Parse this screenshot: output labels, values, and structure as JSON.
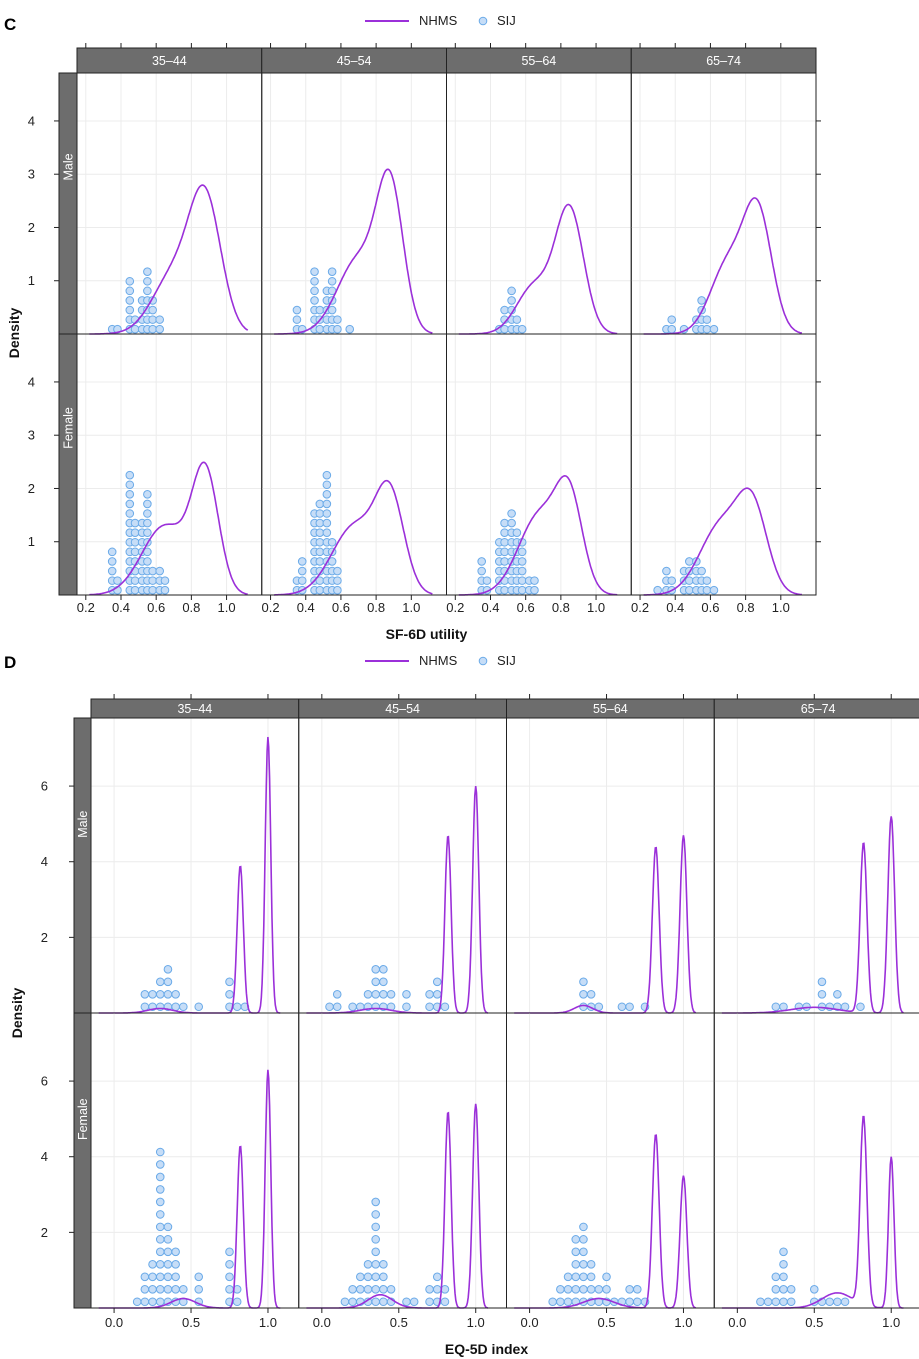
{
  "colors": {
    "NHMS": "#9b30d9",
    "SIJ_fill": "#c6ddf7",
    "SIJ_stroke": "#6aaae8",
    "strip": "#6d6d6d"
  },
  "chart_data": [
    {
      "type": "lattice-density",
      "panel_letter": "C",
      "legend": [
        "NHMS",
        "SIJ"
      ],
      "columns": [
        "35–44",
        "45–54",
        "55–64",
        "65–74"
      ],
      "rows": [
        "Male",
        "Female"
      ],
      "xlabel": "SF-6D utility",
      "ylabel": "Density",
      "xlim": [
        0.15,
        1.2
      ],
      "ylim": [
        0,
        4.9
      ],
      "xticks": [
        0.2,
        0.4,
        0.6,
        0.8,
        1.0
      ],
      "xtick_labels": [
        "0.2",
        "0.4",
        "0.6",
        "0.8",
        "1.0"
      ],
      "yticks": [
        1,
        2,
        3,
        4
      ],
      "dot_step": 0.18,
      "series": [
        {
          "name": "NHMS",
          "kind": "line"
        },
        {
          "name": "SIJ",
          "kind": "dotplot"
        }
      ],
      "panels": [
        {
          "row": "Male",
          "col": "35–44",
          "nhms": {
            "base_start": 0.22,
            "base_end": 1.12,
            "components": [
              {
                "mu": 0.88,
                "sigma": 0.09,
                "h": 2.4
              },
              {
                "mu": 0.7,
                "sigma": 0.12,
                "h": 1.1
              }
            ]
          },
          "sij": [
            [
              0.35,
              1
            ],
            [
              0.38,
              1
            ],
            [
              0.45,
              6
            ],
            [
              0.48,
              2
            ],
            [
              0.52,
              4
            ],
            [
              0.55,
              7
            ],
            [
              0.58,
              4
            ],
            [
              0.62,
              2
            ]
          ]
        },
        {
          "row": "Male",
          "col": "45–54",
          "nhms": {
            "base_start": 0.22,
            "base_end": 1.12,
            "components": [
              {
                "mu": 0.88,
                "sigma": 0.075,
                "h": 2.6
              },
              {
                "mu": 0.7,
                "sigma": 0.12,
                "h": 1.4
              }
            ]
          },
          "sij": [
            [
              0.35,
              3
            ],
            [
              0.38,
              1
            ],
            [
              0.45,
              7
            ],
            [
              0.48,
              3
            ],
            [
              0.52,
              5
            ],
            [
              0.55,
              7
            ],
            [
              0.58,
              2
            ],
            [
              0.65,
              1
            ]
          ]
        },
        {
          "row": "Male",
          "col": "55–64",
          "nhms": {
            "base_start": 0.22,
            "base_end": 1.12,
            "components": [
              {
                "mu": 0.85,
                "sigma": 0.08,
                "h": 2.3
              },
              {
                "mu": 0.65,
                "sigma": 0.1,
                "h": 0.9
              }
            ]
          },
          "sij": [
            [
              0.45,
              1
            ],
            [
              0.48,
              3
            ],
            [
              0.52,
              5
            ],
            [
              0.55,
              2
            ],
            [
              0.58,
              1
            ]
          ]
        },
        {
          "row": "Male",
          "col": "65–74",
          "nhms": {
            "base_start": 0.22,
            "base_end": 1.12,
            "components": [
              {
                "mu": 0.87,
                "sigma": 0.08,
                "h": 2.2
              },
              {
                "mu": 0.7,
                "sigma": 0.1,
                "h": 1.3
              }
            ]
          },
          "sij": [
            [
              0.35,
              1
            ],
            [
              0.38,
              2
            ],
            [
              0.45,
              1
            ],
            [
              0.52,
              2
            ],
            [
              0.55,
              4
            ],
            [
              0.58,
              2
            ],
            [
              0.62,
              1
            ]
          ]
        },
        {
          "row": "Female",
          "col": "35–44",
          "nhms": {
            "base_start": 0.22,
            "base_end": 1.12,
            "components": [
              {
                "mu": 0.88,
                "sigma": 0.075,
                "h": 2.2
              },
              {
                "mu": 0.65,
                "sigma": 0.13,
                "h": 1.3
              }
            ]
          },
          "sij": [
            [
              0.35,
              5
            ],
            [
              0.38,
              2
            ],
            [
              0.45,
              13
            ],
            [
              0.48,
              8
            ],
            [
              0.52,
              8
            ],
            [
              0.55,
              11
            ],
            [
              0.58,
              3
            ],
            [
              0.62,
              3
            ],
            [
              0.65,
              2
            ]
          ]
        },
        {
          "row": "Female",
          "col": "45–54",
          "nhms": {
            "base_start": 0.22,
            "base_end": 1.12,
            "components": [
              {
                "mu": 0.88,
                "sigma": 0.08,
                "h": 1.7
              },
              {
                "mu": 0.68,
                "sigma": 0.13,
                "h": 1.3
              }
            ]
          },
          "sij": [
            [
              0.35,
              2
            ],
            [
              0.38,
              4
            ],
            [
              0.45,
              9
            ],
            [
              0.48,
              10
            ],
            [
              0.52,
              13
            ],
            [
              0.55,
              6
            ],
            [
              0.58,
              3
            ]
          ]
        },
        {
          "row": "Female",
          "col": "55–64",
          "nhms": {
            "base_start": 0.22,
            "base_end": 1.12,
            "components": [
              {
                "mu": 0.85,
                "sigma": 0.075,
                "h": 1.6
              },
              {
                "mu": 0.68,
                "sigma": 0.12,
                "h": 1.5
              }
            ]
          },
          "sij": [
            [
              0.35,
              4
            ],
            [
              0.38,
              2
            ],
            [
              0.45,
              6
            ],
            [
              0.48,
              8
            ],
            [
              0.52,
              9
            ],
            [
              0.55,
              7
            ],
            [
              0.58,
              6
            ],
            [
              0.62,
              2
            ],
            [
              0.65,
              2
            ]
          ]
        },
        {
          "row": "Female",
          "col": "65–74",
          "nhms": {
            "base_start": 0.22,
            "base_end": 1.12,
            "components": [
              {
                "mu": 0.84,
                "sigma": 0.085,
                "h": 1.5
              },
              {
                "mu": 0.66,
                "sigma": 0.12,
                "h": 1.3
              }
            ]
          },
          "sij": [
            [
              0.3,
              1
            ],
            [
              0.35,
              3
            ],
            [
              0.38,
              2
            ],
            [
              0.45,
              3
            ],
            [
              0.48,
              4
            ],
            [
              0.52,
              4
            ],
            [
              0.55,
              3
            ],
            [
              0.58,
              2
            ],
            [
              0.62,
              1
            ]
          ]
        }
      ]
    },
    {
      "type": "lattice-density",
      "panel_letter": "D",
      "legend": [
        "NHMS",
        "SIJ"
      ],
      "columns": [
        "35–44",
        "45–54",
        "55–64",
        "65–74"
      ],
      "rows": [
        "Male",
        "Female"
      ],
      "xlabel": "EQ-5D index",
      "ylabel": "Density",
      "xlim": [
        -0.15,
        1.2
      ],
      "ylim": [
        0,
        7.8
      ],
      "xticks": [
        0.0,
        0.5,
        1.0
      ],
      "xtick_labels": [
        "0.0",
        "0.5",
        "1.0"
      ],
      "yticks": [
        2,
        4,
        6
      ],
      "dot_step": 0.33,
      "series": [
        {
          "name": "NHMS",
          "kind": "line"
        },
        {
          "name": "SIJ",
          "kind": "dotplot"
        }
      ],
      "panels": [
        {
          "row": "Male",
          "col": "35–44",
          "nhms": {
            "base_start": -0.1,
            "base_end": 1.08,
            "components": [
              {
                "mu": 1.0,
                "sigma": 0.018,
                "h": 7.3
              },
              {
                "mu": 0.82,
                "sigma": 0.02,
                "h": 3.9
              },
              {
                "mu": 0.3,
                "sigma": 0.08,
                "h": 0.12
              }
            ]
          },
          "sij": [
            [
              0.2,
              2
            ],
            [
              0.25,
              2
            ],
            [
              0.3,
              3
            ],
            [
              0.35,
              4
            ],
            [
              0.4,
              2
            ],
            [
              0.45,
              1
            ],
            [
              0.55,
              1
            ],
            [
              0.75,
              3
            ],
            [
              0.8,
              1
            ],
            [
              0.85,
              1
            ]
          ]
        },
        {
          "row": "Male",
          "col": "45–54",
          "nhms": {
            "base_start": -0.1,
            "base_end": 1.08,
            "components": [
              {
                "mu": 1.0,
                "sigma": 0.02,
                "h": 6.0
              },
              {
                "mu": 0.82,
                "sigma": 0.02,
                "h": 4.7
              },
              {
                "mu": 0.35,
                "sigma": 0.1,
                "h": 0.12
              }
            ]
          },
          "sij": [
            [
              0.05,
              1
            ],
            [
              0.1,
              2
            ],
            [
              0.2,
              1
            ],
            [
              0.25,
              1
            ],
            [
              0.3,
              2
            ],
            [
              0.35,
              4
            ],
            [
              0.4,
              4
            ],
            [
              0.45,
              2
            ],
            [
              0.55,
              2
            ],
            [
              0.7,
              2
            ],
            [
              0.75,
              3
            ],
            [
              0.8,
              1
            ]
          ]
        },
        {
          "row": "Male",
          "col": "55–64",
          "nhms": {
            "base_start": -0.1,
            "base_end": 1.08,
            "components": [
              {
                "mu": 1.0,
                "sigma": 0.022,
                "h": 4.7
              },
              {
                "mu": 0.82,
                "sigma": 0.022,
                "h": 4.4
              },
              {
                "mu": 0.35,
                "sigma": 0.06,
                "h": 0.2
              }
            ]
          },
          "sij": [
            [
              0.35,
              3
            ],
            [
              0.4,
              2
            ],
            [
              0.45,
              1
            ],
            [
              0.6,
              1
            ],
            [
              0.65,
              1
            ],
            [
              0.75,
              1
            ]
          ]
        },
        {
          "row": "Male",
          "col": "65–74",
          "nhms": {
            "base_start": -0.1,
            "base_end": 1.08,
            "components": [
              {
                "mu": 1.0,
                "sigma": 0.022,
                "h": 5.2
              },
              {
                "mu": 0.82,
                "sigma": 0.022,
                "h": 4.5
              },
              {
                "mu": 0.5,
                "sigma": 0.15,
                "h": 0.15
              }
            ]
          },
          "sij": [
            [
              0.25,
              1
            ],
            [
              0.3,
              1
            ],
            [
              0.4,
              1
            ],
            [
              0.45,
              1
            ],
            [
              0.55,
              3
            ],
            [
              0.6,
              1
            ],
            [
              0.65,
              2
            ],
            [
              0.7,
              1
            ],
            [
              0.8,
              1
            ]
          ]
        },
        {
          "row": "Female",
          "col": "35–44",
          "nhms": {
            "base_start": -0.1,
            "base_end": 1.08,
            "components": [
              {
                "mu": 1.0,
                "sigma": 0.018,
                "h": 6.3
              },
              {
                "mu": 0.82,
                "sigma": 0.02,
                "h": 4.3
              },
              {
                "mu": 0.45,
                "sigma": 0.08,
                "h": 0.25
              }
            ]
          },
          "sij": [
            [
              0.15,
              1
            ],
            [
              0.2,
              3
            ],
            [
              0.25,
              4
            ],
            [
              0.3,
              13
            ],
            [
              0.35,
              7
            ],
            [
              0.4,
              5
            ],
            [
              0.45,
              2
            ],
            [
              0.55,
              3
            ],
            [
              0.75,
              5
            ],
            [
              0.8,
              2
            ]
          ]
        },
        {
          "row": "Female",
          "col": "45–54",
          "nhms": {
            "base_start": -0.1,
            "base_end": 1.08,
            "components": [
              {
                "mu": 1.0,
                "sigma": 0.02,
                "h": 5.4
              },
              {
                "mu": 0.82,
                "sigma": 0.02,
                "h": 5.2
              },
              {
                "mu": 0.38,
                "sigma": 0.08,
                "h": 0.35
              }
            ]
          },
          "sij": [
            [
              0.15,
              1
            ],
            [
              0.2,
              2
            ],
            [
              0.25,
              3
            ],
            [
              0.3,
              4
            ],
            [
              0.35,
              9
            ],
            [
              0.4,
              4
            ],
            [
              0.45,
              2
            ],
            [
              0.55,
              1
            ],
            [
              0.6,
              1
            ],
            [
              0.7,
              2
            ],
            [
              0.75,
              3
            ],
            [
              0.8,
              2
            ]
          ]
        },
        {
          "row": "Female",
          "col": "55–64",
          "nhms": {
            "base_start": -0.1,
            "base_end": 1.08,
            "components": [
              {
                "mu": 1.0,
                "sigma": 0.022,
                "h": 3.5
              },
              {
                "mu": 0.82,
                "sigma": 0.022,
                "h": 4.6
              },
              {
                "mu": 0.45,
                "sigma": 0.1,
                "h": 0.25
              }
            ]
          },
          "sij": [
            [
              0.15,
              1
            ],
            [
              0.2,
              2
            ],
            [
              0.25,
              3
            ],
            [
              0.3,
              6
            ],
            [
              0.35,
              7
            ],
            [
              0.4,
              4
            ],
            [
              0.45,
              2
            ],
            [
              0.5,
              3
            ],
            [
              0.55,
              1
            ],
            [
              0.6,
              1
            ],
            [
              0.65,
              2
            ],
            [
              0.7,
              2
            ],
            [
              0.75,
              1
            ]
          ]
        },
        {
          "row": "Female",
          "col": "65–74",
          "nhms": {
            "base_start": -0.1,
            "base_end": 1.08,
            "components": [
              {
                "mu": 1.0,
                "sigma": 0.018,
                "h": 4.0
              },
              {
                "mu": 0.82,
                "sigma": 0.022,
                "h": 5.0
              },
              {
                "mu": 0.65,
                "sigma": 0.1,
                "h": 0.4
              }
            ]
          },
          "sij": [
            [
              0.15,
              1
            ],
            [
              0.2,
              1
            ],
            [
              0.25,
              3
            ],
            [
              0.3,
              5
            ],
            [
              0.35,
              2
            ],
            [
              0.5,
              2
            ],
            [
              0.55,
              1
            ],
            [
              0.6,
              1
            ],
            [
              0.65,
              1
            ],
            [
              0.7,
              1
            ]
          ]
        }
      ]
    }
  ]
}
